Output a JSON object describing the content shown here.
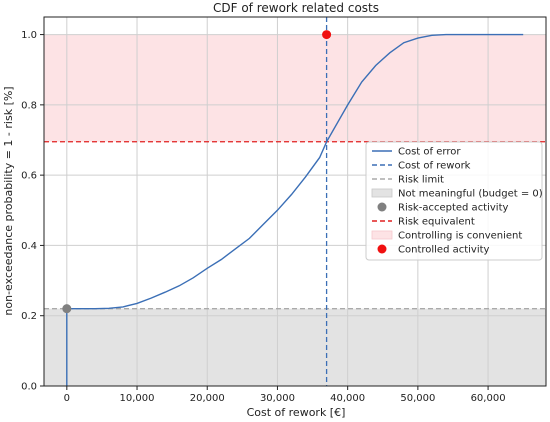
{
  "chart_data": {
    "type": "line",
    "title": "CDF of rework related costs",
    "xlabel": "Cost of rework [€]",
    "ylabel": "non-exceedance probability = 1 - risk [%]",
    "xlim": [
      -3250,
      68250
    ],
    "ylim": [
      0.0,
      1.05
    ],
    "x_ticks": [
      0,
      10000,
      20000,
      30000,
      40000,
      50000,
      60000
    ],
    "x_tick_labels": [
      "0",
      "10,000",
      "20,000",
      "30,000",
      "40,000",
      "50,000",
      "60,000"
    ],
    "y_ticks": [
      0.0,
      0.2,
      0.4,
      0.6,
      0.8,
      1.0
    ],
    "y_tick_labels": [
      "0.0",
      "0.2",
      "0.4",
      "0.6",
      "0.8",
      "1.0"
    ],
    "grid": true,
    "legend_position": "center-right",
    "series": [
      {
        "name": "Cost of error",
        "kind": "line",
        "color": "#3b6fb6",
        "x": [
          0,
          0,
          2000,
          4000,
          6000,
          8000,
          10000,
          12000,
          14000,
          16000,
          18000,
          20000,
          22000,
          24000,
          26000,
          28000,
          30000,
          32000,
          34000,
          36000,
          37000,
          38000,
          40000,
          42000,
          44000,
          46000,
          48000,
          50000,
          52000,
          54000,
          56000,
          58000,
          60000,
          62000,
          65000
        ],
        "y": [
          0.0,
          0.22,
          0.22,
          0.22,
          0.221,
          0.225,
          0.235,
          0.25,
          0.267,
          0.285,
          0.308,
          0.335,
          0.36,
          0.39,
          0.42,
          0.46,
          0.5,
          0.545,
          0.595,
          0.65,
          0.695,
          0.73,
          0.8,
          0.865,
          0.912,
          0.948,
          0.977,
          0.99,
          0.998,
          1.0,
          1.0,
          1.0,
          1.0,
          1.0,
          1.0
        ]
      },
      {
        "name": "Cost of rework",
        "kind": "vline",
        "x": 37000,
        "color": "#3b6fb6"
      },
      {
        "name": "Risk limit",
        "kind": "hline",
        "y": 0.22,
        "color": "#aaaaaa"
      },
      {
        "name": "Not meaningful (budget = 0)",
        "kind": "hspan",
        "y_range": [
          0.0,
          0.22
        ],
        "color": "#e3e3e3"
      },
      {
        "name": "Risk-accepted activity",
        "kind": "point",
        "x": 0,
        "y": 0.22,
        "color": "#808080"
      },
      {
        "name": "Risk equivalent",
        "kind": "hline",
        "y": 0.695,
        "color": "#e02020"
      },
      {
        "name": "Controlling is convenient",
        "kind": "hspan",
        "y_range": [
          0.695,
          1.0
        ],
        "color": "#fde3e5"
      },
      {
        "name": "Controlled activity",
        "kind": "point",
        "x": 37000,
        "y": 1.0,
        "color": "#f01010"
      }
    ]
  }
}
